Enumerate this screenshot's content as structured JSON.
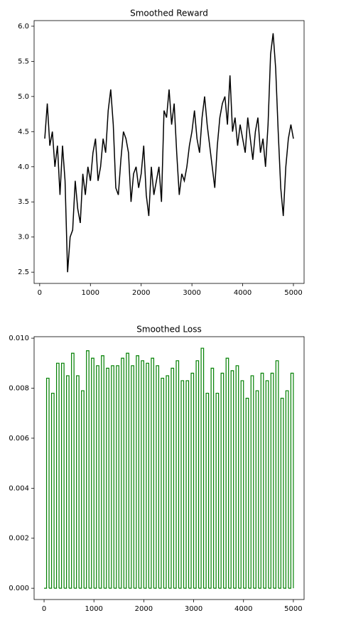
{
  "chart_data": [
    {
      "type": "line",
      "title": "Smoothed Reward",
      "color": "#000000",
      "x": [
        100,
        150,
        200,
        250,
        300,
        350,
        400,
        450,
        500,
        550,
        600,
        650,
        700,
        750,
        800,
        850,
        900,
        950,
        1000,
        1050,
        1100,
        1150,
        1200,
        1250,
        1300,
        1350,
        1400,
        1450,
        1500,
        1550,
        1600,
        1650,
        1700,
        1750,
        1800,
        1850,
        1900,
        1950,
        2000,
        2050,
        2100,
        2150,
        2200,
        2250,
        2300,
        2350,
        2400,
        2450,
        2500,
        2550,
        2600,
        2650,
        2700,
        2750,
        2800,
        2850,
        2900,
        2950,
        3000,
        3050,
        3100,
        3150,
        3200,
        3250,
        3300,
        3350,
        3400,
        3450,
        3500,
        3550,
        3600,
        3650,
        3700,
        3750,
        3800,
        3850,
        3900,
        3950,
        4000,
        4050,
        4100,
        4150,
        4200,
        4250,
        4300,
        4350,
        4400,
        4450,
        4500,
        4550,
        4600,
        4650,
        4700,
        4750,
        4800,
        4850,
        4900,
        4950,
        5000
      ],
      "values": [
        4.4,
        4.9,
        4.3,
        4.5,
        4.0,
        4.3,
        3.6,
        4.3,
        3.8,
        2.5,
        3.0,
        3.1,
        3.8,
        3.4,
        3.2,
        3.9,
        3.6,
        4.0,
        3.8,
        4.2,
        4.4,
        3.8,
        4.0,
        4.4,
        4.2,
        4.8,
        5.1,
        4.6,
        3.7,
        3.6,
        4.1,
        4.5,
        4.4,
        4.2,
        3.5,
        3.9,
        4.0,
        3.7,
        3.9,
        4.3,
        3.6,
        3.3,
        4.0,
        3.6,
        3.8,
        4.0,
        3.5,
        4.8,
        4.7,
        5.1,
        4.6,
        4.9,
        4.2,
        3.6,
        3.9,
        3.8,
        4.0,
        4.3,
        4.5,
        4.8,
        4.4,
        4.2,
        4.7,
        5.0,
        4.6,
        4.3,
        4.0,
        3.7,
        4.3,
        4.7,
        4.9,
        5.0,
        4.6,
        5.3,
        4.5,
        4.7,
        4.3,
        4.6,
        4.4,
        4.2,
        4.7,
        4.4,
        4.1,
        4.5,
        4.7,
        4.2,
        4.4,
        4.0,
        4.6,
        5.6,
        5.9,
        5.4,
        4.5,
        3.7,
        3.3,
        4.0,
        4.4,
        4.6,
        4.4
      ],
      "xlim": [
        -110,
        5210
      ],
      "xticks": [
        0,
        1000,
        2000,
        3000,
        4000,
        5000
      ],
      "ylim": [
        2.34,
        6.08
      ],
      "yticks": [
        2.5,
        {
          "value": 3,
          "label": "3.0"
        },
        3.5,
        {
          "value": 4,
          "label": "4.0"
        },
        4.5,
        {
          "value": 5,
          "label": "5.0"
        },
        5.5,
        {
          "value": 6,
          "label": "6.0"
        }
      ]
    },
    {
      "type": "bar",
      "title": "Smoothed Loss",
      "color": "#008000",
      "x": [
        50,
        150,
        250,
        350,
        450,
        550,
        650,
        750,
        850,
        950,
        1050,
        1150,
        1250,
        1350,
        1450,
        1550,
        1650,
        1750,
        1850,
        1950,
        2050,
        2150,
        2250,
        2350,
        2450,
        2550,
        2650,
        2750,
        2850,
        2950,
        3050,
        3150,
        3250,
        3350,
        3450,
        3550,
        3650,
        3750,
        3850,
        3950,
        4050,
        4150,
        4250,
        4350,
        4450,
        4550,
        4650,
        4750,
        4850,
        4950
      ],
      "values": [
        0.0084,
        0.0078,
        0.009,
        0.009,
        0.0085,
        0.0094,
        0.0085,
        0.0079,
        0.0095,
        0.0092,
        0.0089,
        0.0093,
        0.0088,
        0.0089,
        0.0089,
        0.0092,
        0.0094,
        0.0089,
        0.0093,
        0.0091,
        0.009,
        0.0092,
        0.0089,
        0.0084,
        0.0085,
        0.0088,
        0.0091,
        0.0083,
        0.0083,
        0.0086,
        0.0091,
        0.0096,
        0.0078,
        0.0088,
        0.0078,
        0.0086,
        0.0092,
        0.0087,
        0.0089,
        0.0083,
        0.0076,
        0.0085,
        0.0079,
        0.0086,
        0.0083,
        0.0086,
        0.0091,
        0.0076,
        0.0079,
        0.0086
      ],
      "xlim": [
        -200,
        5215
      ],
      "xticks": [
        0,
        1000,
        2000,
        3000,
        4000,
        5000
      ],
      "ylim": [
        -0.00045,
        0.01006
      ],
      "yticks": [
        {
          "value": 0,
          "label": "0.000"
        },
        {
          "value": 0.002,
          "label": "0.002"
        },
        {
          "value": 0.004,
          "label": "0.004"
        },
        {
          "value": 0.006,
          "label": "0.006"
        },
        {
          "value": 0.008,
          "label": "0.008"
        },
        {
          "value": 0.01,
          "label": "0.010"
        }
      ]
    }
  ]
}
